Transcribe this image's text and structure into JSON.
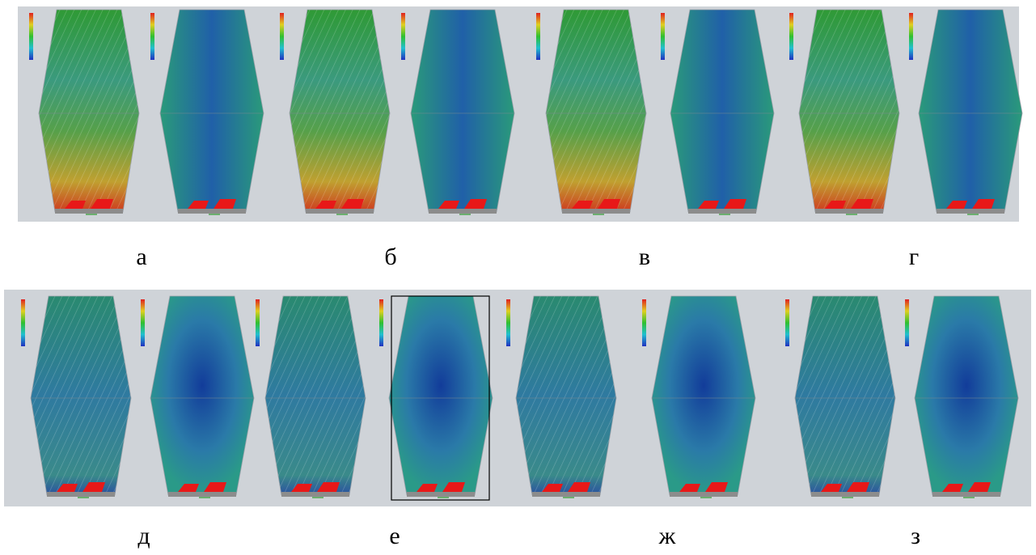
{
  "labels": [
    "а",
    "б",
    "в",
    "г",
    "д",
    "е",
    "ж",
    "з"
  ]
}
